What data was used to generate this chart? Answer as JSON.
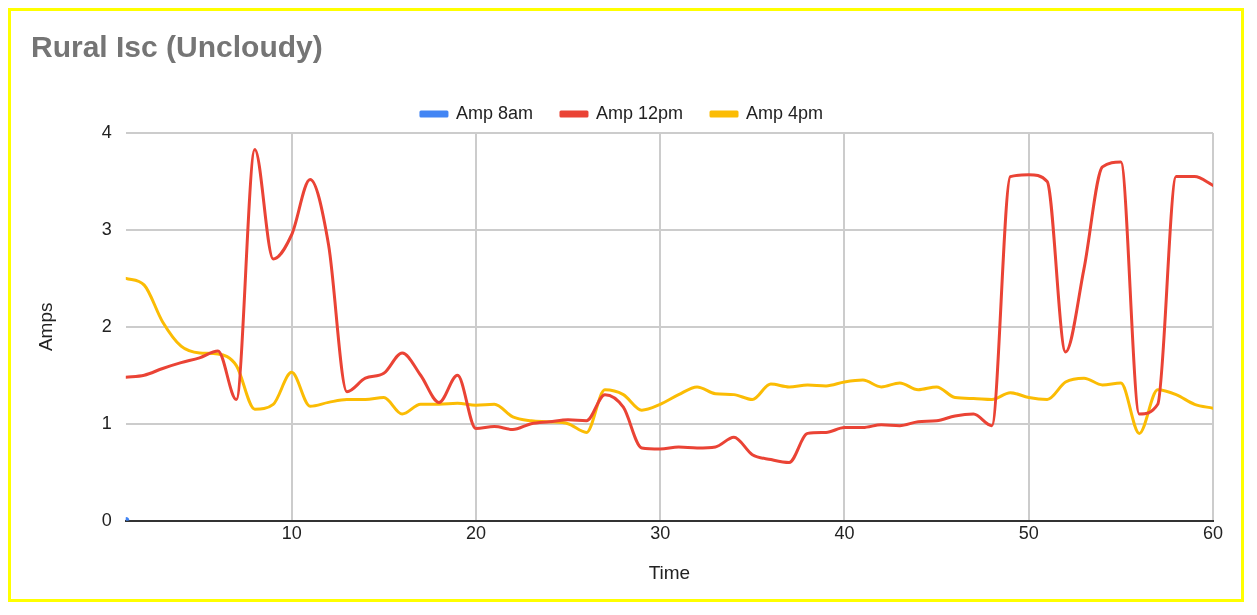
{
  "chart_data": {
    "type": "line",
    "title": "Rural Isc (Uncloudy)",
    "xlabel": "Time",
    "ylabel": "Amps",
    "x": [
      1,
      2,
      3,
      4,
      5,
      6,
      7,
      8,
      9,
      10,
      11,
      12,
      13,
      14,
      15,
      16,
      17,
      18,
      19,
      20,
      21,
      22,
      23,
      24,
      25,
      26,
      27,
      28,
      29,
      30,
      31,
      32,
      33,
      34,
      35,
      36,
      37,
      38,
      39,
      40,
      41,
      42,
      43,
      44,
      45,
      46,
      47,
      48,
      49,
      50,
      51,
      52,
      53,
      54,
      55,
      56,
      57,
      58,
      59,
      60
    ],
    "series": [
      {
        "name": "Amp 8am",
        "color": "#4285f4",
        "x": [
          1
        ],
        "values": [
          0
        ],
        "marker": "circle"
      },
      {
        "name": "Amp 12pm",
        "color": "#ea4335",
        "values": [
          1.48,
          1.5,
          1.57,
          1.63,
          1.68,
          1.75,
          1.25,
          3.83,
          2.7,
          2.95,
          3.52,
          2.85,
          1.33,
          1.47,
          1.52,
          1.73,
          1.5,
          1.22,
          1.5,
          0.95,
          0.97,
          0.94,
          1.0,
          1.02,
          1.04,
          1.03,
          1.3,
          1.17,
          0.75,
          0.74,
          0.76,
          0.75,
          0.76,
          0.86,
          0.68,
          0.63,
          0.6,
          0.9,
          0.91,
          0.96,
          0.96,
          0.99,
          0.98,
          1.02,
          1.03,
          1.08,
          1.1,
          0.98,
          3.55,
          3.57,
          3.5,
          1.74,
          2.6,
          3.65,
          3.7,
          1.1,
          1.2,
          3.55,
          3.55,
          3.46
        ]
      },
      {
        "name": "Amp 4pm",
        "color": "#fbbc04",
        "values": [
          2.5,
          2.43,
          2.05,
          1.8,
          1.73,
          1.72,
          1.6,
          1.15,
          1.2,
          1.53,
          1.18,
          1.22,
          1.25,
          1.25,
          1.27,
          1.1,
          1.2,
          1.2,
          1.21,
          1.19,
          1.2,
          1.07,
          1.03,
          1.02,
          1.0,
          0.91,
          1.35,
          1.3,
          1.14,
          1.2,
          1.3,
          1.38,
          1.31,
          1.3,
          1.25,
          1.41,
          1.38,
          1.4,
          1.39,
          1.43,
          1.45,
          1.38,
          1.42,
          1.35,
          1.38,
          1.27,
          1.26,
          1.25,
          1.32,
          1.27,
          1.25,
          1.43,
          1.47,
          1.4,
          1.42,
          0.9,
          1.35,
          1.3,
          1.2,
          1.16
        ]
      }
    ],
    "xlim": [
      1,
      60
    ],
    "xticks": [
      10,
      20,
      30,
      40,
      50,
      60
    ],
    "ylim": [
      0,
      4
    ],
    "yticks": [
      0,
      1,
      2,
      3,
      4
    ],
    "grid": true,
    "legend": "top",
    "marker": "none",
    "line_style": "solid"
  }
}
